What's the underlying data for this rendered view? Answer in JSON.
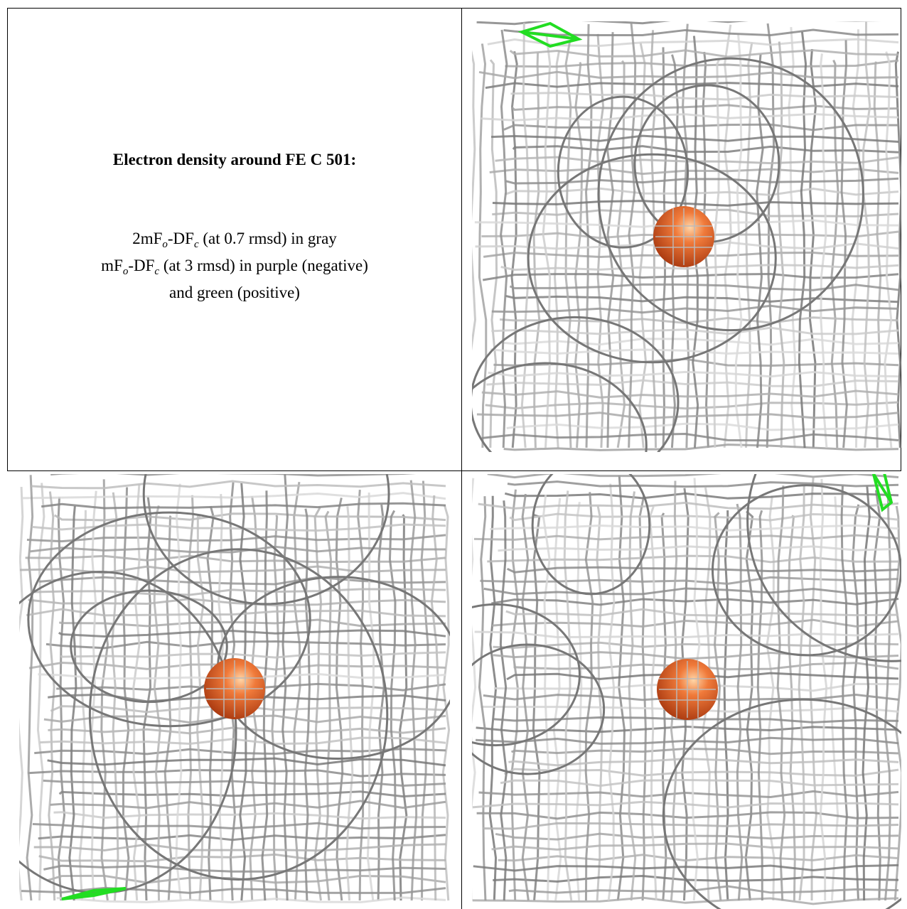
{
  "panel": {
    "title": "Electron density around FE C 501:",
    "lines": [
      [
        "2mF",
        "o",
        "-DF",
        "c",
        " (at 0.7 rmsd) in gray"
      ],
      [
        "mF",
        "o",
        "-DF",
        "c",
        " (at 3 rmsd) in purple (negative)"
      ],
      [
        "and green (positive)"
      ]
    ]
  }
}
